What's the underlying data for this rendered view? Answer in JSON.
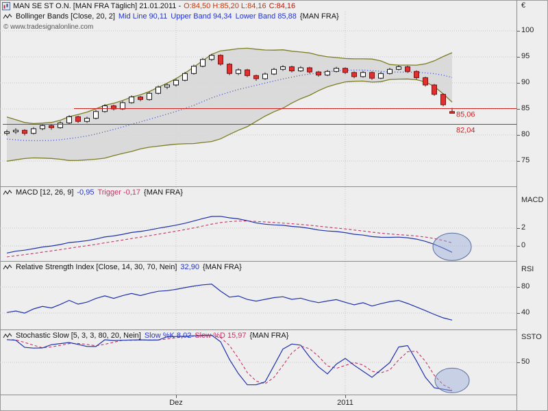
{
  "window": {
    "title_instrument": "MAN SE ST O.N. [MAN FRA Täglich] 21.01.2011 -",
    "title_ohl": "O:84,50 H:85,20 L:84,16",
    "title_close": "C:84,16"
  },
  "watermark": "© www.tradesignalonline.com",
  "rows": {
    "bollinger": {
      "name": "Bollinger Bands [Close, 20, 2]",
      "mid": "Mid Line 90,11",
      "upper": "Upper Band 94,34",
      "lower": "Lower Band 85,88",
      "context": "{MAN FRA}"
    },
    "macd": {
      "name": "MACD [12, 26, 9]",
      "value": "-0,95",
      "trigger": "Trigger -0,17",
      "context": "{MAN FRA}"
    },
    "rsi": {
      "name": "Relative Strength Index [Close, 14, 30, 70, Nein]",
      "value": "32,90",
      "context": "{MAN FRA}"
    },
    "stoch": {
      "name": "Stochastic Slow [5, 3, 3, 80, 20, Nein]",
      "k": "Slow %K 8,02",
      "d": "Slow %D 15,97",
      "context": "{MAN FRA}"
    }
  },
  "colors": {
    "up_candle": "#ffffff",
    "down_candle": "#e03030",
    "up_border": "#111111",
    "down_border": "#801010",
    "wick": "#222222",
    "band_line": "#7c7c22",
    "band_fill": "#d6d6d6",
    "mid_line": "#3946c8",
    "macd_line": "#1f2fa8",
    "trigger_line": "#c23366",
    "rsi_line": "#1f2fa8",
    "stoch_k": "#1f2fa8",
    "stoch_d": "#c23366",
    "hline": "#cc2222",
    "grid": "#c6c6c6",
    "highlight_fill": "rgba(150,170,215,0.45)",
    "highlight_stroke": "#5a6f9e"
  },
  "chart_data": {
    "type": "candlestick",
    "title": "MAN SE ST O.N. [MAN FRA Täglich]",
    "date": "21.01.2011",
    "ohlc_last": {
      "open": 84.5,
      "high": 85.2,
      "low": 84.16,
      "close": 84.16
    },
    "y_axis": {
      "unit": "€",
      "ticks": [
        "100",
        "95",
        "90",
        "85",
        "80",
        "75"
      ],
      "range": [
        73,
        103
      ]
    },
    "x_axis": {
      "labels": [
        {
          "text": "Dez",
          "index": 19
        },
        {
          "text": "2011",
          "index": 38
        }
      ]
    },
    "pre_window_closes": [
      83.5,
      83.0,
      82.2,
      81.4,
      80.6,
      79.8,
      79.0,
      78.2,
      77.6,
      77.0,
      76.6,
      76.4,
      76.6,
      77.0,
      77.6,
      78.3,
      79.0,
      79.6,
      80.1
    ],
    "candles": [
      [
        80.3,
        81.0,
        79.9,
        80.6
      ],
      [
        80.6,
        81.3,
        80.2,
        80.9
      ],
      [
        80.9,
        81.1,
        79.9,
        80.3
      ],
      [
        80.3,
        81.5,
        80.1,
        81.2
      ],
      [
        81.2,
        82.1,
        80.9,
        81.8
      ],
      [
        81.8,
        82.0,
        81.0,
        81.4
      ],
      [
        81.4,
        82.6,
        81.2,
        82.3
      ],
      [
        82.3,
        83.8,
        82.1,
        83.5
      ],
      [
        83.5,
        83.7,
        82.3,
        82.6
      ],
      [
        82.6,
        83.5,
        82.3,
        83.2
      ],
      [
        83.2,
        84.8,
        83.0,
        84.5
      ],
      [
        84.5,
        85.9,
        84.3,
        85.6
      ],
      [
        85.6,
        85.8,
        84.7,
        85.0
      ],
      [
        85.0,
        86.5,
        84.8,
        86.2
      ],
      [
        86.2,
        87.6,
        86.0,
        87.3
      ],
      [
        87.3,
        87.5,
        86.5,
        86.8
      ],
      [
        86.8,
        88.3,
        86.6,
        88.0
      ],
      [
        88.0,
        89.5,
        87.8,
        89.2
      ],
      [
        89.2,
        89.9,
        88.8,
        89.6
      ],
      [
        89.6,
        90.8,
        89.3,
        90.5
      ],
      [
        90.5,
        92.1,
        90.3,
        91.8
      ],
      [
        91.8,
        93.5,
        91.6,
        93.2
      ],
      [
        93.2,
        94.8,
        93.0,
        94.5
      ],
      [
        94.5,
        95.6,
        94.2,
        95.3
      ],
      [
        95.3,
        95.5,
        93.3,
        93.6
      ],
      [
        93.6,
        93.8,
        91.5,
        91.8
      ],
      [
        91.8,
        92.8,
        91.5,
        92.5
      ],
      [
        92.5,
        92.7,
        91.1,
        91.4
      ],
      [
        91.4,
        91.6,
        90.4,
        90.8
      ],
      [
        90.8,
        92.0,
        90.6,
        91.7
      ],
      [
        91.7,
        92.9,
        91.5,
        92.6
      ],
      [
        92.6,
        93.4,
        92.3,
        93.1
      ],
      [
        93.1,
        93.3,
        92.0,
        92.3
      ],
      [
        92.3,
        93.2,
        92.1,
        92.9
      ],
      [
        92.9,
        93.1,
        91.8,
        92.1
      ],
      [
        92.1,
        92.3,
        91.2,
        91.5
      ],
      [
        91.5,
        92.5,
        91.3,
        92.2
      ],
      [
        92.2,
        93.1,
        92.0,
        92.8
      ],
      [
        92.8,
        93.0,
        91.7,
        92.0
      ],
      [
        92.0,
        92.2,
        90.9,
        91.2
      ],
      [
        91.2,
        92.3,
        91.0,
        92.0
      ],
      [
        92.0,
        92.2,
        90.6,
        90.9
      ],
      [
        90.9,
        92.1,
        90.7,
        91.8
      ],
      [
        91.8,
        92.9,
        91.6,
        92.6
      ],
      [
        92.6,
        93.4,
        92.4,
        93.1
      ],
      [
        93.1,
        93.3,
        91.9,
        92.2
      ],
      [
        92.2,
        92.4,
        90.7,
        91.0
      ],
      [
        91.0,
        91.2,
        89.3,
        89.6
      ],
      [
        89.6,
        89.8,
        87.5,
        87.8
      ],
      [
        87.8,
        88.0,
        85.5,
        85.8
      ],
      [
        84.5,
        85.2,
        84.16,
        84.16
      ]
    ],
    "bollinger": {
      "period": 20,
      "deviation": 2,
      "mid_last": 90.11,
      "upper_last": 94.34,
      "lower_last": 85.88
    },
    "hlines": [
      {
        "value": 85.06,
        "label": "85,06",
        "from_index": 8
      },
      {
        "value": 82.04,
        "label": "82,04",
        "from_index": 0
      }
    ],
    "indicators": {
      "macd": {
        "params": [
          12,
          26,
          9
        ],
        "last": -0.95,
        "trigger_last": -0.17,
        "axis_label": "MACD",
        "axis_ticks": [
          "2",
          "0"
        ]
      },
      "rsi": {
        "params": "Close, 14, 30, 70, Nein",
        "last": 32.9,
        "axis_label": "RSI",
        "axis_ticks": [
          "80",
          "40"
        ]
      },
      "stoch": {
        "params": "5, 3, 3, 80, 20, Nein",
        "k_last": 8.02,
        "d_last": 15.97,
        "axis_label": "SSTO",
        "axis_ticks": [
          "50"
        ]
      }
    },
    "annotations": [
      {
        "panel": "macd",
        "index": 50,
        "value": -0.1,
        "rx": 28,
        "ry": 20
      },
      {
        "panel": "stoch",
        "index": 50,
        "value": 20,
        "rx": 25,
        "ry": 18
      }
    ]
  }
}
